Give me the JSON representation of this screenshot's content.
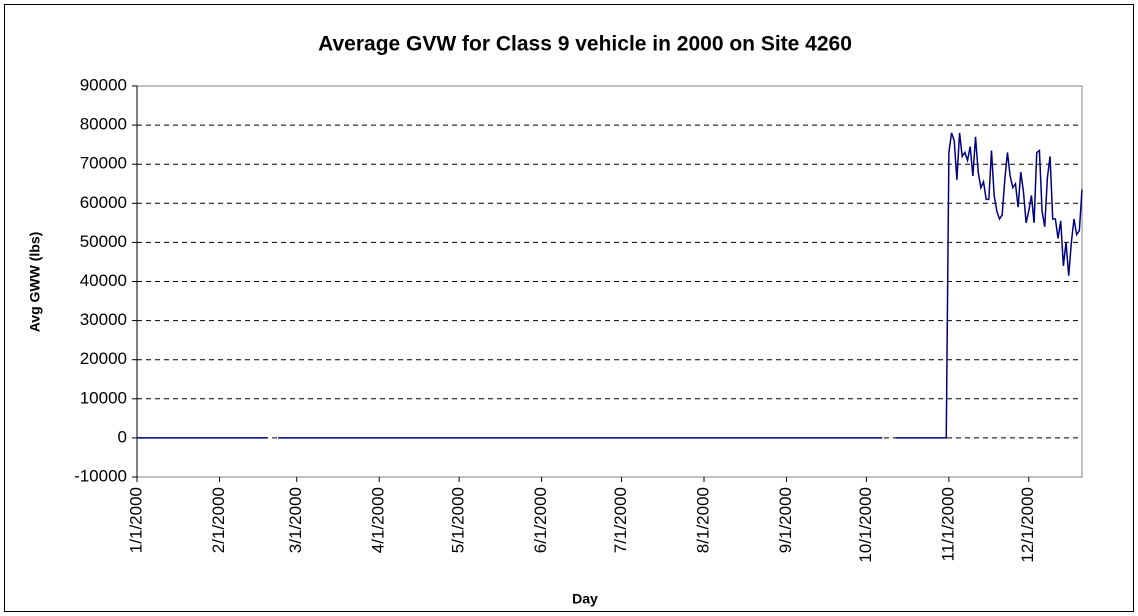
{
  "chart_data": {
    "type": "line",
    "title": "Average GVW for Class 9 vehicle in 2000 on Site 4260",
    "xlabel": "Day",
    "ylabel": "Avg GWW (lbs)",
    "color": "#000080",
    "grid": true,
    "xlim": [
      "1/1/2000",
      "12/21/2000"
    ],
    "xticks": [
      "1/1/2000",
      "2/1/2000",
      "3/1/2000",
      "4/1/2000",
      "5/1/2000",
      "6/1/2000",
      "7/1/2000",
      "8/1/2000",
      "9/1/2000",
      "10/1/2000",
      "11/1/2000",
      "12/1/2000"
    ],
    "ylim": [
      -10000,
      90000
    ],
    "yticks": [
      -10000,
      0,
      10000,
      20000,
      30000,
      40000,
      50000,
      60000,
      70000,
      80000,
      90000
    ],
    "x": [
      "1/1/2000",
      "2/19/2000",
      "2/21/2000",
      "2/23/2000",
      "10/7/2000",
      "10/9/2000",
      "10/12/2000",
      "10/31/2000",
      "11/1/2000",
      "11/2/2000",
      "11/3/2000",
      "11/4/2000",
      "11/5/2000",
      "11/6/2000",
      "11/7/2000",
      "11/8/2000",
      "11/9/2000",
      "11/10/2000",
      "11/11/2000",
      "11/12/2000",
      "11/13/2000",
      "11/14/2000",
      "11/15/2000",
      "11/16/2000",
      "11/17/2000",
      "11/18/2000",
      "11/19/2000",
      "11/20/2000",
      "11/21/2000",
      "11/22/2000",
      "11/23/2000",
      "11/24/2000",
      "11/25/2000",
      "11/26/2000",
      "11/27/2000",
      "11/28/2000",
      "11/29/2000",
      "11/30/2000",
      "12/1/2000",
      "12/2/2000",
      "12/3/2000",
      "12/4/2000",
      "12/5/2000",
      "12/6/2000",
      "12/7/2000",
      "12/8/2000",
      "12/9/2000",
      "12/10/2000",
      "12/11/2000",
      "12/12/2000",
      "12/13/2000",
      "12/14/2000",
      "12/15/2000",
      "12/16/2000",
      "12/17/2000",
      "12/18/2000",
      "12/19/2000",
      "12/20/2000",
      "12/21/2000"
    ],
    "values": [
      0,
      0,
      null,
      0,
      0,
      null,
      0,
      0,
      73000,
      78000,
      76000,
      66000,
      78000,
      72000,
      73000,
      71000,
      74500,
      67000,
      77000,
      68000,
      64000,
      65500,
      61000,
      61000,
      73500,
      62000,
      58000,
      56000,
      57000,
      66000,
      73000,
      67000,
      64000,
      65000,
      59000,
      68000,
      63000,
      55000,
      58000,
      62000,
      55000,
      73000,
      73500,
      58000,
      54000,
      66500,
      72000,
      56000,
      56000,
      51000,
      55500,
      44000,
      50000,
      41500,
      50000,
      56000,
      52000,
      53000,
      63500
    ]
  }
}
